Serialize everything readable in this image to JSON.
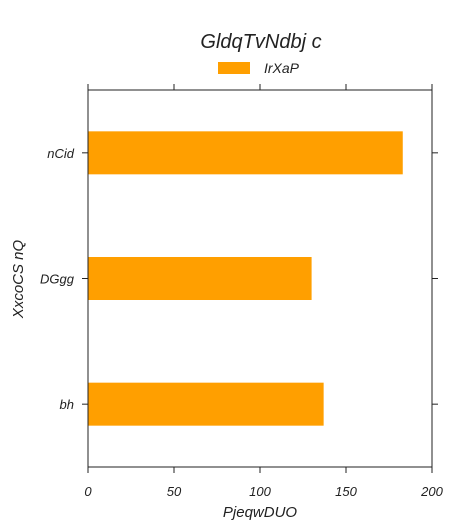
{
  "chart_data": {
    "type": "bar",
    "orientation": "horizontal",
    "title": "GldqTvNdbj c",
    "xlabel": "PjeqwDUO",
    "ylabel": "XxcoCS  nQ",
    "categories": [
      "bh",
      "DGgg",
      "nCid"
    ],
    "series": [
      {
        "name": "IrXaP",
        "values": [
          137,
          130,
          183
        ],
        "color": "#ff9f00"
      }
    ],
    "xlim": [
      0,
      200
    ],
    "xticks": [
      0,
      50,
      100,
      150,
      200
    ],
    "grid": false,
    "legend_position": "top-center"
  }
}
